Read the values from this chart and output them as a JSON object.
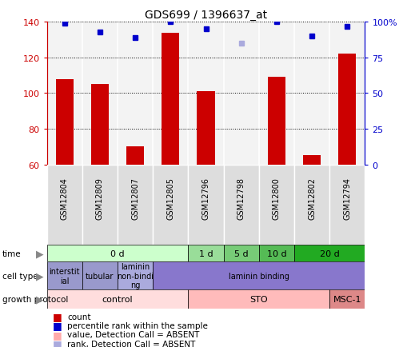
{
  "title": "GDS699 / 1396637_at",
  "samples": [
    "GSM12804",
    "GSM12809",
    "GSM12807",
    "GSM12805",
    "GSM12796",
    "GSM12798",
    "GSM12800",
    "GSM12802",
    "GSM12794"
  ],
  "counts": [
    108,
    105,
    70,
    134,
    101,
    60,
    109,
    65,
    122
  ],
  "count_absent": [
    false,
    false,
    false,
    false,
    false,
    true,
    false,
    false,
    false
  ],
  "percentile_ranks": [
    99,
    93,
    89,
    100,
    95,
    85,
    100,
    90,
    97
  ],
  "rank_absent": [
    false,
    false,
    false,
    false,
    false,
    true,
    false,
    false,
    false
  ],
  "ylim_left": [
    60,
    140
  ],
  "ylim_right": [
    0,
    100
  ],
  "yticks_left": [
    60,
    80,
    100,
    120,
    140
  ],
  "yticks_right": [
    0,
    25,
    50,
    75,
    100
  ],
  "left_axis_color": "#cc0000",
  "right_axis_color": "#0000cc",
  "bar_color_present": "#cc0000",
  "bar_color_absent": "#ffaaaa",
  "dot_color_present": "#0000cc",
  "dot_color_absent": "#aaaadd",
  "time_groups": [
    {
      "label": "0 d",
      "start": 0,
      "end": 4,
      "color": "#ccffcc"
    },
    {
      "label": "1 d",
      "start": 4,
      "end": 5,
      "color": "#99dd99"
    },
    {
      "label": "5 d",
      "start": 5,
      "end": 6,
      "color": "#77cc77"
    },
    {
      "label": "10 d",
      "start": 6,
      "end": 7,
      "color": "#55bb55"
    },
    {
      "label": "20 d",
      "start": 7,
      "end": 9,
      "color": "#22aa22"
    }
  ],
  "cell_type_groups": [
    {
      "label": "interstit\nial",
      "start": 0,
      "end": 1,
      "color": "#9999cc"
    },
    {
      "label": "tubular",
      "start": 1,
      "end": 2,
      "color": "#9999cc"
    },
    {
      "label": "laminin\nnon-bindi\nng",
      "start": 2,
      "end": 3,
      "color": "#aaaadd"
    },
    {
      "label": "laminin binding",
      "start": 3,
      "end": 9,
      "color": "#8877cc"
    }
  ],
  "growth_protocol_groups": [
    {
      "label": "control",
      "start": 0,
      "end": 4,
      "color": "#ffdddd"
    },
    {
      "label": "STO",
      "start": 4,
      "end": 8,
      "color": "#ffbbbb"
    },
    {
      "label": "MSC-1",
      "start": 8,
      "end": 9,
      "color": "#dd8888"
    }
  ],
  "row_labels": [
    "time",
    "cell type",
    "growth protocol"
  ],
  "bg_color": "#ffffff",
  "plot_bg": "#ffffff",
  "sample_col_bg": "#dddddd"
}
